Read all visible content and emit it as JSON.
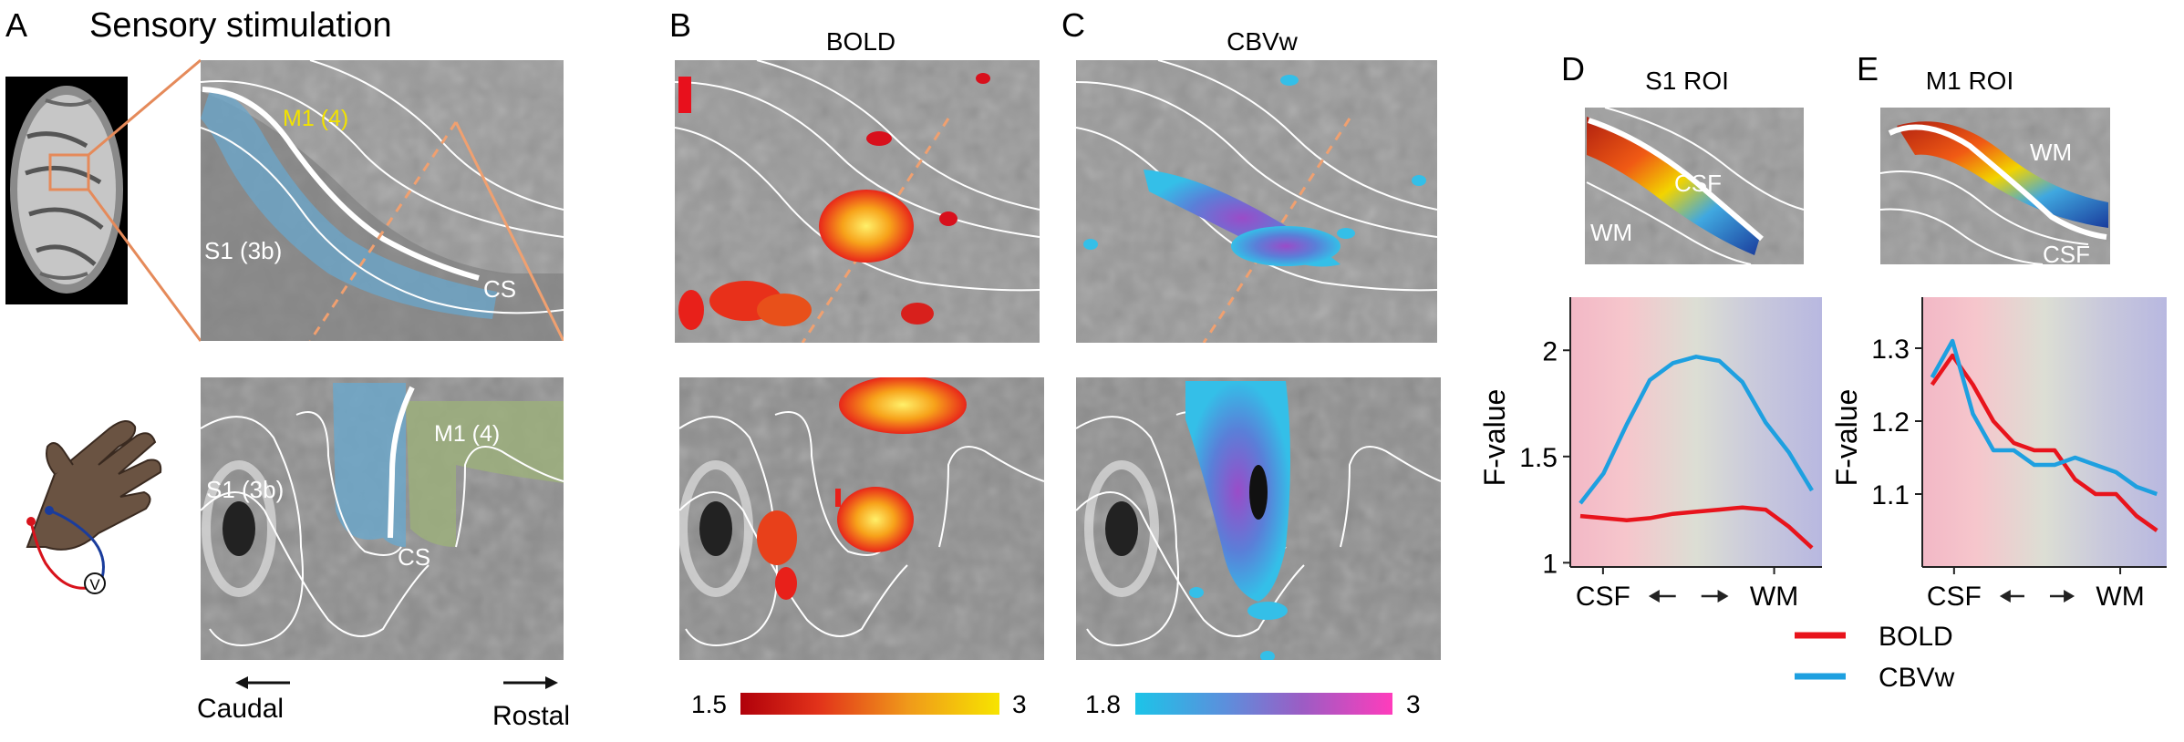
{
  "panels": {
    "A": {
      "letter": "A",
      "title": "Sensory stimulation",
      "m1_top": "M1 (4)",
      "s1_top": "S1 (3b)",
      "cs_top": "CS",
      "s1_bottom": "S1 (3b)",
      "m1_bottom": "M1 (4)",
      "cs_bottom": "CS",
      "caudal": "Caudal",
      "rostral": "Rostal",
      "hand_v": "V"
    },
    "B": {
      "letter": "B",
      "title": "BOLD",
      "cbar_min": "1.5",
      "cbar_max": "3"
    },
    "C": {
      "letter": "C",
      "title": "CBVw",
      "cbar_min": "1.8",
      "cbar_max": "3"
    },
    "D": {
      "letter": "D",
      "title": "S1 ROI",
      "csf_label": "CSF",
      "wm_label": "WM"
    },
    "E": {
      "letter": "E",
      "title": "M1 ROI",
      "csf_label": "CSF",
      "wm_label": "WM"
    }
  },
  "colors": {
    "bold": "#e8141c",
    "cbvw": "#1ea0e0"
  },
  "legend": {
    "bold": "BOLD",
    "cbvw": "CBVw"
  },
  "chart_data": [
    {
      "type": "line",
      "panel": "D",
      "title": "",
      "xlabel": "CSF ← → WM",
      "ylabel": "F-value",
      "x_tick_labels": [
        "CSF",
        "WM"
      ],
      "ylim": [
        0.98,
        2.25
      ],
      "yticks": [
        1,
        1.5,
        2
      ],
      "ytick_labels": [
        "1",
        "1.5",
        "2"
      ],
      "x": [
        1,
        2,
        3,
        4,
        5,
        6,
        7,
        8,
        9,
        10,
        11
      ],
      "series": [
        {
          "name": "BOLD",
          "values": [
            1.22,
            1.21,
            1.2,
            1.21,
            1.23,
            1.24,
            1.25,
            1.26,
            1.25,
            1.17,
            1.07
          ]
        },
        {
          "name": "CBVw",
          "values": [
            1.28,
            1.42,
            1.65,
            1.86,
            1.94,
            1.97,
            1.95,
            1.85,
            1.66,
            1.52,
            1.34
          ]
        }
      ]
    },
    {
      "type": "line",
      "panel": "E",
      "title": "",
      "xlabel": "CSF ← → WM",
      "ylabel": "F-value",
      "x_tick_labels": [
        "CSF",
        "WM"
      ],
      "ylim": [
        1.0,
        1.37
      ],
      "yticks": [
        1.1,
        1.2,
        1.3
      ],
      "ytick_labels": [
        "1.1",
        "1.2",
        "1.3"
      ],
      "x": [
        1,
        2,
        3,
        4,
        5,
        6,
        7,
        8,
        9,
        10,
        11,
        12
      ],
      "series": [
        {
          "name": "BOLD",
          "values": [
            1.25,
            1.29,
            1.25,
            1.2,
            1.17,
            1.16,
            1.16,
            1.12,
            1.1,
            1.1,
            1.07,
            1.05
          ]
        },
        {
          "name": "CBVw",
          "values": [
            1.26,
            1.31,
            1.21,
            1.16,
            1.16,
            1.14,
            1.14,
            1.15,
            1.14,
            1.13,
            1.11,
            1.1
          ]
        }
      ]
    }
  ]
}
